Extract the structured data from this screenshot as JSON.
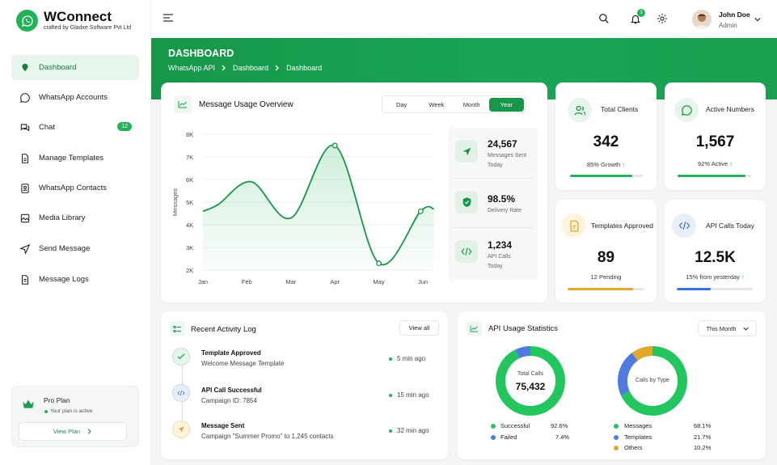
{
  "brand": {
    "name": "WConnect",
    "subtitle": "crafted by Gladxe Software Pvt Ltd"
  },
  "sidebar": {
    "items": [
      {
        "label": "Dashboard",
        "icon": "dashboard-icon",
        "active": true
      },
      {
        "label": "WhatsApp Accounts",
        "icon": "whatsapp-icon"
      },
      {
        "label": "Chat",
        "icon": "chat-icon",
        "badge": "12"
      },
      {
        "label": "Manage Templates",
        "icon": "template-icon"
      },
      {
        "label": "WhatsApp Contacts",
        "icon": "contacts-icon"
      },
      {
        "label": "Media Library",
        "icon": "image-icon"
      },
      {
        "label": "Send Message",
        "icon": "send-icon"
      },
      {
        "label": "Message Logs",
        "icon": "log-icon"
      }
    ],
    "plan": {
      "title": "Pro Plan",
      "status": "Your plan is active",
      "button": "View Plan"
    }
  },
  "header": {
    "notification_count": "3",
    "user": {
      "name": "John Doe",
      "role": "Admin"
    }
  },
  "banner": {
    "title": "DASHBOARD",
    "breadcrumb": [
      "WhatsApp API",
      "Dashboard",
      "Dashboard"
    ]
  },
  "usage": {
    "title": "Message Usage Overview",
    "ranges": [
      "Day",
      "Week",
      "Month",
      "Year"
    ],
    "selected_range": "Year",
    "stats": [
      {
        "value": "24,567",
        "label1": "Messages Sent",
        "label2": "Today",
        "icon": "send-icon"
      },
      {
        "value": "98.5%",
        "label1": "Delivery Rate",
        "label2": "",
        "icon": "shield-check-icon"
      },
      {
        "value": "1,234",
        "label1": "API Calls",
        "label2": "Today",
        "icon": "code-icon"
      }
    ]
  },
  "chart_data": {
    "type": "line",
    "categories": [
      "Jan",
      "Feb",
      "Mar",
      "Apr",
      "May",
      "Jun"
    ],
    "x": [
      0,
      1,
      2,
      3,
      4,
      5
    ],
    "values": [
      4.6,
      5.9,
      4.3,
      7.5,
      2.3,
      4.6
    ],
    "curve_points": [
      {
        "x": 0,
        "y": 4.6
      },
      {
        "x": 0.35,
        "y": 4.9
      },
      {
        "x": 1.1,
        "y": 5.9
      },
      {
        "x": 2.0,
        "y": 4.3
      },
      {
        "x": 3.0,
        "y": 7.5
      },
      {
        "x": 4.0,
        "y": 2.3
      },
      {
        "x": 4.95,
        "y": 4.6
      },
      {
        "x": 5.25,
        "y": 4.7
      }
    ],
    "markers": [
      {
        "x": 3.0,
        "y": 7.5
      },
      {
        "x": 4.0,
        "y": 2.3
      },
      {
        "x": 4.95,
        "y": 4.6
      }
    ],
    "y_ticks": [
      "2K",
      "3K",
      "4K",
      "5K",
      "6K",
      "7K",
      "8K"
    ],
    "ylabel": "Messages",
    "ylim": [
      2,
      8
    ],
    "grid": "horizontal"
  },
  "kpis": [
    {
      "title": "Total Clients",
      "value": "342",
      "sub": "85% Growth",
      "progress": 0.85,
      "color": "#22b35a",
      "icon": "users-icon",
      "trend": "up"
    },
    {
      "title": "Active Numbers",
      "value": "1,567",
      "sub": "92% Active",
      "progress": 0.92,
      "color": "#22b35a",
      "icon": "whatsapp-icon",
      "trend": "up"
    },
    {
      "title": "Templates Approved",
      "value": "89",
      "sub": "12 Pending",
      "progress": 0.85,
      "color": "#e0a82e",
      "icon": "template-icon",
      "trend": ""
    },
    {
      "title": "API Calls Today",
      "value": "12.5K",
      "sub": "15% from yesterday",
      "progress": 0.45,
      "color": "#3b6fd8",
      "icon": "code-icon",
      "trend": "up"
    }
  ],
  "activity": {
    "title": "Recent Activity Log",
    "view_all": "View all",
    "items": [
      {
        "title": "Template Approved",
        "desc": "Welcome Message Template",
        "time": "5 min ago",
        "icon": "check-icon",
        "color": "#22b35a"
      },
      {
        "title": "API Call Successful",
        "desc": "Campaign ID: 7854",
        "time": "15 min ago",
        "icon": "code-icon",
        "color": "#3b6fd8"
      },
      {
        "title": "Message Sent",
        "desc": "Campaign \"Summer Promo\" to 1,245 contacts",
        "time": "32 min ago",
        "icon": "send-icon",
        "color": "#e0a82e"
      }
    ]
  },
  "api_stats": {
    "title": "API Usage Statistics",
    "period": "This Month",
    "donut1": {
      "label": "Total Calls",
      "total": "75,432",
      "segments": [
        {
          "name": "Successful",
          "value": 92.6,
          "display": "92.6%",
          "color": "#22c55e"
        },
        {
          "name": "Failed",
          "value": 7.4,
          "display": "7.4%",
          "color": "#4f7be0"
        }
      ]
    },
    "donut2": {
      "label": "Calls by Type",
      "segments": [
        {
          "name": "Messages",
          "value": 68.1,
          "display": "68.1%",
          "color": "#22c55e"
        },
        {
          "name": "Templates",
          "value": 21.7,
          "display": "21.7%",
          "color": "#4f7be0"
        },
        {
          "name": "Others",
          "value": 10.2,
          "display": "10.2%",
          "color": "#e0a82e"
        }
      ]
    }
  }
}
